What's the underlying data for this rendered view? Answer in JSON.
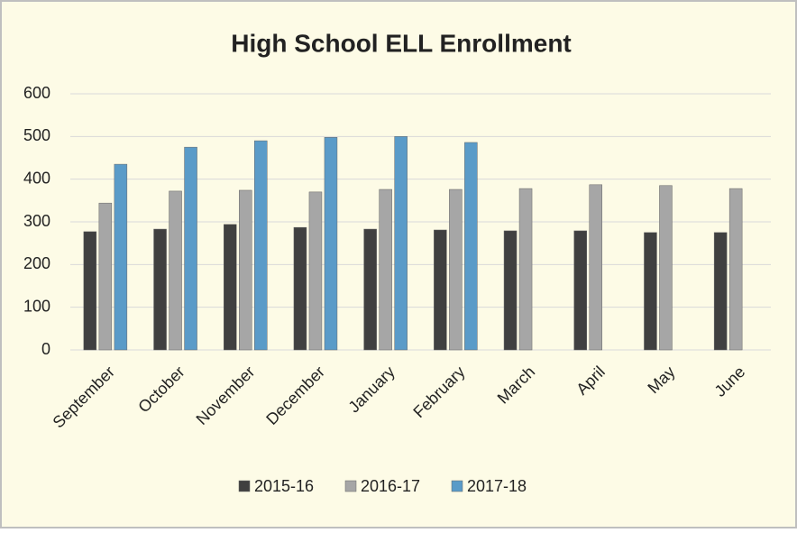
{
  "chart_data": {
    "type": "bar",
    "title": "High School ELL Enrollment",
    "categories": [
      "September",
      "October",
      "November",
      "December",
      "January",
      "February",
      "March",
      "April",
      "May",
      "June"
    ],
    "series": [
      {
        "name": "2015-16",
        "color": "#404040",
        "values": [
          277,
          283,
          294,
          287,
          283,
          281,
          279,
          279,
          275,
          275
        ]
      },
      {
        "name": "2016-17",
        "color": "#a6a6a6",
        "values": [
          344,
          372,
          374,
          370,
          376,
          376,
          378,
          387,
          385,
          378
        ]
      },
      {
        "name": "2017-18",
        "color": "#5a9bc8",
        "values": [
          435,
          475,
          490,
          498,
          500,
          486,
          null,
          null,
          null,
          null
        ]
      }
    ],
    "ylim": [
      0,
      600
    ],
    "yticks": [
      0,
      100,
      200,
      300,
      400,
      500,
      600
    ],
    "grid": true,
    "legend": "bottom"
  }
}
